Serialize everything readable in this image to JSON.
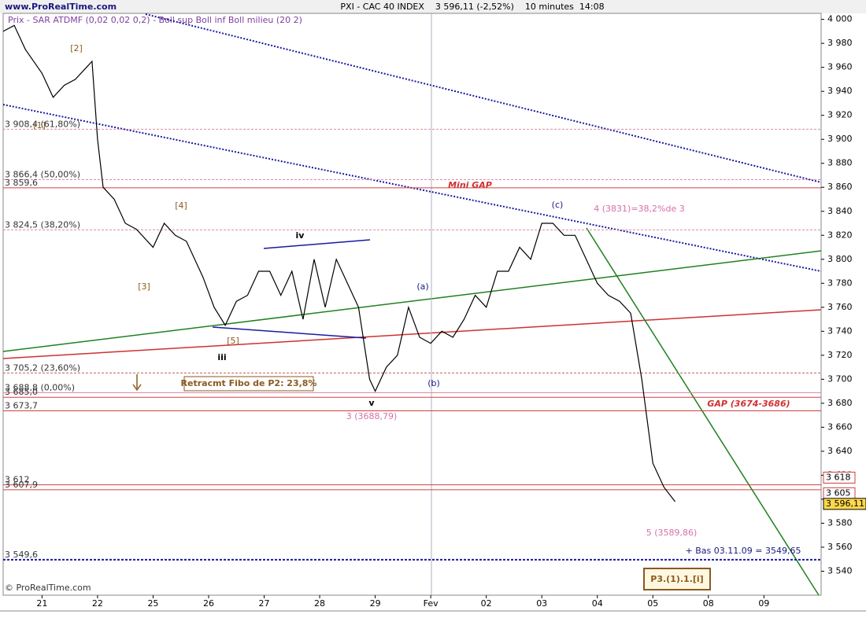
{
  "header": {
    "site": "www.ProRealTime.com",
    "title": "PXI - CAC 40 INDEX    3 596,11 (-2,52%)    10 minutes  14:08",
    "indicators": "Prix - SAR ATDMF (0,02 0,02 0,2) - Boll sup Boll inf Boll milieu (20 2)"
  },
  "chart_data": {
    "type": "line",
    "color": "#000000",
    "x": [
      -0.7,
      -0.5,
      -0.3,
      0,
      0.2,
      0.4,
      0.6,
      0.8,
      0.9,
      1.0,
      1.1,
      1.3,
      1.5,
      1.7,
      2.0,
      2.2,
      2.4,
      2.6,
      2.9,
      3.1,
      3.3,
      3.5,
      3.7,
      3.9,
      4.1,
      4.3,
      4.5,
      4.7,
      4.9,
      5.1,
      5.3,
      5.5,
      5.7,
      5.9,
      6.0,
      6.2,
      6.4,
      6.6,
      6.8,
      7.0,
      7.2,
      7.4,
      7.6,
      7.8,
      8.0,
      8.2,
      8.4,
      8.6,
      8.8,
      9.0,
      9.2,
      9.4,
      9.6,
      9.8,
      10.0,
      10.2,
      10.4,
      10.6,
      10.8,
      11.0,
      11.2,
      11.4
    ],
    "values": [
      3990,
      3995,
      3975,
      3955,
      3935,
      3945,
      3950,
      3960,
      3965,
      3900,
      3860,
      3850,
      3830,
      3825,
      3810,
      3830,
      3820,
      3815,
      3785,
      3760,
      3745,
      3765,
      3770,
      3790,
      3790,
      3770,
      3790,
      3750,
      3800,
      3760,
      3800,
      3780,
      3760,
      3700,
      3690,
      3710,
      3720,
      3760,
      3735,
      3730,
      3740,
      3735,
      3750,
      3770,
      3760,
      3790,
      3790,
      3810,
      3800,
      3830,
      3830,
      3820,
      3820,
      3800,
      3780,
      3770,
      3765,
      3755,
      3700,
      3630,
      3610,
      3598
    ],
    "xlim": [
      -0.7,
      14.03
    ],
    "xticks": [
      {
        "value": 0,
        "label": "21"
      },
      {
        "value": 1,
        "label": "22"
      },
      {
        "value": 2,
        "label": "25"
      },
      {
        "value": 3,
        "label": "26"
      },
      {
        "value": 4,
        "label": "27"
      },
      {
        "value": 5,
        "label": "28"
      },
      {
        "value": 6,
        "label": "29"
      },
      {
        "value": 7,
        "label": "Fev"
      },
      {
        "value": 8,
        "label": "02"
      },
      {
        "value": 9,
        "label": "03"
      },
      {
        "value": 10,
        "label": "04"
      },
      {
        "value": 11,
        "label": "05"
      },
      {
        "value": 12,
        "label": "08"
      },
      {
        "value": 13,
        "label": "09"
      }
    ],
    "ylim": [
      3520,
      4005
    ],
    "yticks": [
      {
        "value": 3540,
        "label": "3 540"
      },
      {
        "value": 3560,
        "label": "3 560"
      },
      {
        "value": 3580,
        "label": "3 580"
      },
      {
        "value": 3600,
        "label": "3 600"
      },
      {
        "value": 3620,
        "label": "3 620"
      },
      {
        "value": 3640,
        "label": "3 640"
      },
      {
        "value": 3660,
        "label": "3 660"
      },
      {
        "value": 3680,
        "label": "3 680"
      },
      {
        "value": 3700,
        "label": "3 700"
      },
      {
        "value": 3720,
        "label": "3 720"
      },
      {
        "value": 3740,
        "label": "3 740"
      },
      {
        "value": 3760,
        "label": "3 760"
      },
      {
        "value": 3780,
        "label": "3 780"
      },
      {
        "value": 3800,
        "label": "3 800"
      },
      {
        "value": 3820,
        "label": "3 820"
      },
      {
        "value": 3840,
        "label": "3 840"
      },
      {
        "value": 3860,
        "label": "3 860"
      },
      {
        "value": 3880,
        "label": "3 880"
      },
      {
        "value": 3900,
        "label": "3 900"
      },
      {
        "value": 3920,
        "label": "3 920"
      },
      {
        "value": 3940,
        "label": "3 940"
      },
      {
        "value": 3960,
        "label": "3 960"
      },
      {
        "value": 3980,
        "label": "3 980"
      },
      {
        "value": 4000,
        "label": "4 000"
      }
    ],
    "levels": [
      {
        "value": 3908.4,
        "label": "3 908,4 (61,80%)",
        "color": "#d88ca8",
        "dashed": true
      },
      {
        "value": 3866.4,
        "label": "3 866,4 (50,00%)",
        "color": "#d88ca8",
        "dashed": true
      },
      {
        "value": 3859.6,
        "label": "3 859,6",
        "color": "#d04040",
        "dashed": false
      },
      {
        "value": 3824.5,
        "label": "3 824,5 (38,20%)",
        "color": "#d88ca8",
        "dashed": true
      },
      {
        "value": 3705.2,
        "label": "3 705,2 (23,60%)",
        "color": "#c06060",
        "dashed": true
      },
      {
        "value": 3688.8,
        "label": "3 688,8 (0,00%)",
        "color": "#d88ca8",
        "dashed": false
      },
      {
        "value": 3685,
        "label": "3 685,0",
        "color": "#d04040",
        "dashed": false
      },
      {
        "value": 3673.7,
        "label": "3 673,7",
        "color": "#d04040",
        "dashed": false
      },
      {
        "value": 3612,
        "label": "3 612",
        "color": "#d04040",
        "dashed": false
      },
      {
        "value": 3607.9,
        "label": "3 607,9",
        "color": "#d04040",
        "dashed": false
      },
      {
        "value": 3549.6,
        "label": "3 549,6",
        "color": "#1a1aa0",
        "dashed": true
      }
    ],
    "price_tags": [
      {
        "value": 3618,
        "label": "3 618"
      },
      {
        "value": 3605,
        "label": "3 605"
      },
      {
        "value": 3596.11,
        "label": "3 596,11"
      }
    ],
    "annotations": [
      "[1]",
      "[2]",
      "[3]",
      "[4]",
      "[5]",
      "iii",
      "iv",
      "v",
      "(a)",
      "(b)",
      "(c)",
      "3 (3688,79)",
      "4 (3831)=38,2%de 3",
      "5 (3589,86)",
      "Mini GAP",
      "GAP (3674-3686)",
      "Retracmt Fibo de P2: 23,8%",
      "+ Bas 03.11.09 = 3549,65",
      "P3.(1).1.[i]"
    ]
  },
  "footer": "© ProRealTime.com"
}
